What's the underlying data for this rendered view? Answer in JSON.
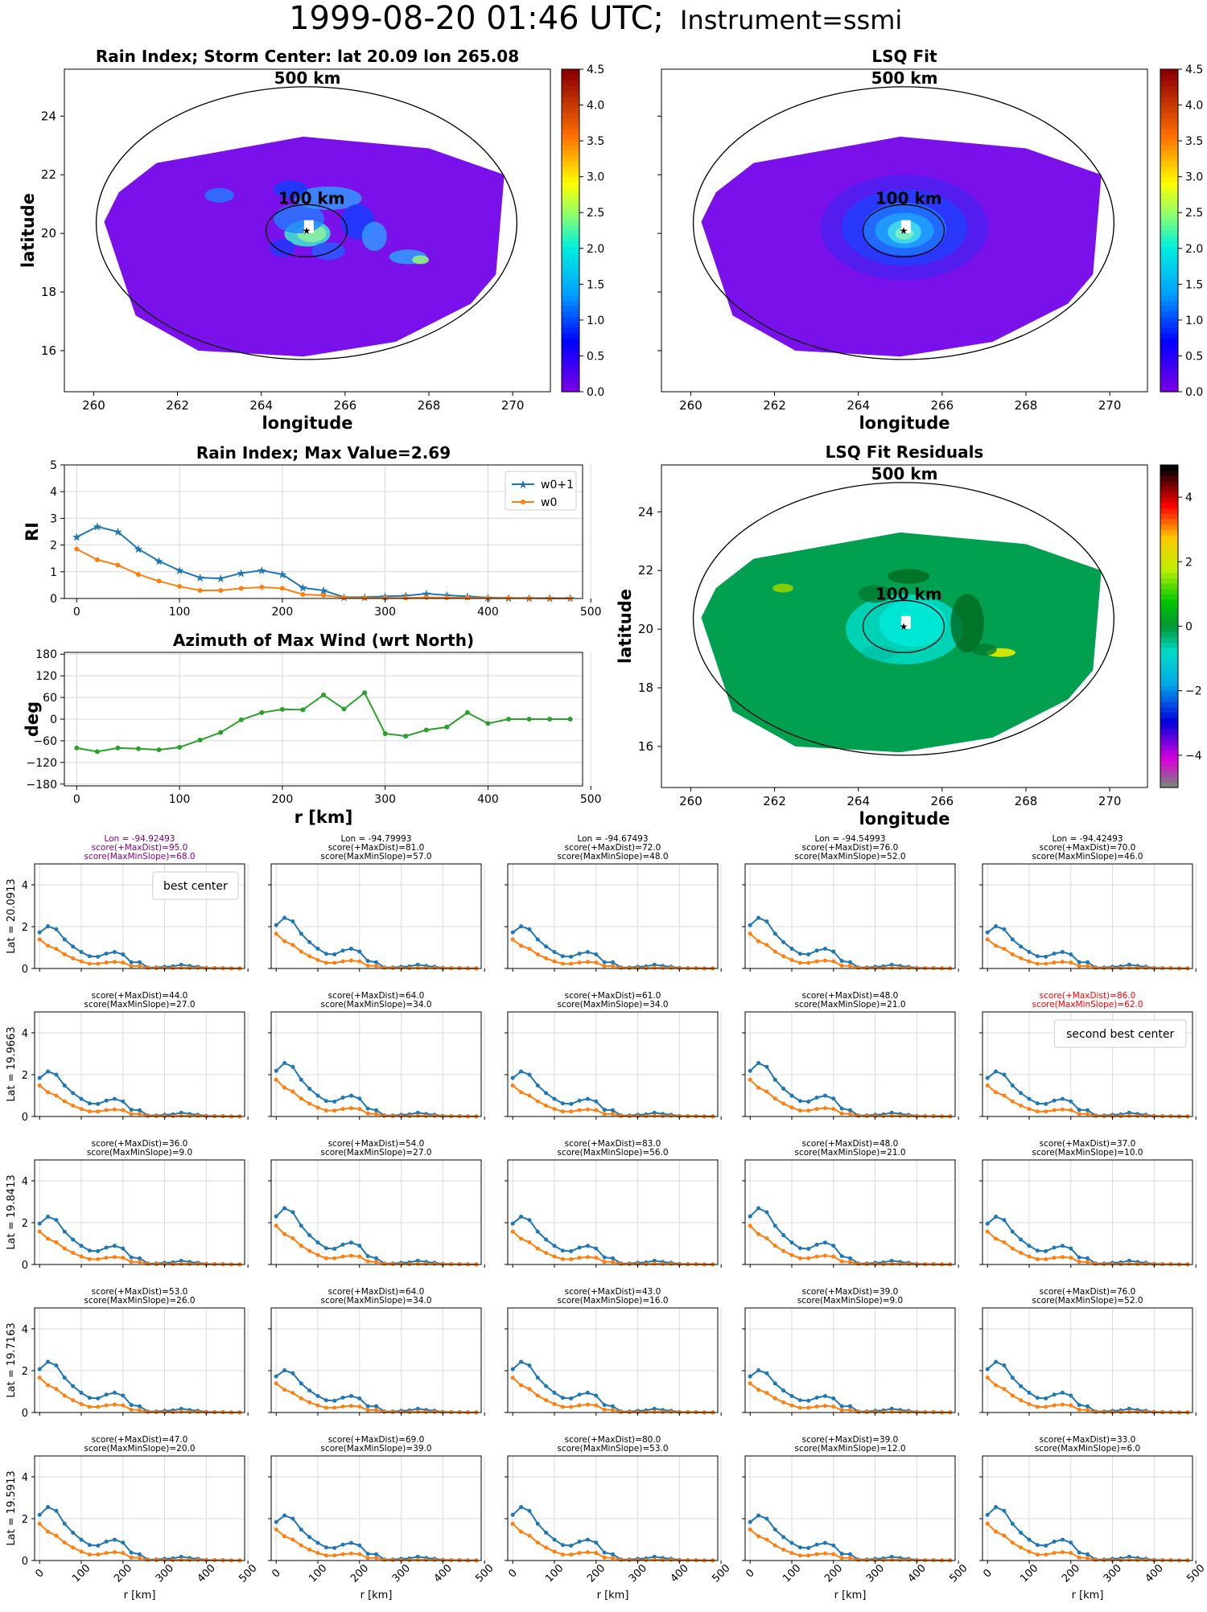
{
  "figure_title_main": "1999-08-20 01:46 UTC;",
  "figure_title_instr": "Instrument=ssmi",
  "chart_data": [
    {
      "id": "rain-index-map",
      "type": "heatmap",
      "title": "Rain Index; Storm Center: lat 20.09 lon 265.08",
      "xlabel": "longitude",
      "ylabel": "latitude",
      "xticks": [
        260,
        262,
        264,
        266,
        268,
        270
      ],
      "yticks": [
        16,
        18,
        20,
        22,
        24
      ],
      "xlim": [
        259.3,
        270.9
      ],
      "ylim": [
        14.6,
        25.6
      ],
      "colorbar": {
        "min": 0,
        "max": 4.5,
        "ticks": [
          "0.0",
          "0.5",
          "1.0",
          "1.5",
          "2.0",
          "2.5",
          "3.0",
          "3.5",
          "4.0",
          "4.5"
        ],
        "colormap": "rainbow"
      },
      "annotations": [
        "500 km",
        "100 km"
      ],
      "center": {
        "lon": 265.08,
        "lat": 20.09
      }
    },
    {
      "id": "lsq-fit-map",
      "type": "heatmap",
      "title": "LSQ Fit",
      "xlabel": "longitude",
      "ylabel": "",
      "xticks": [
        260,
        262,
        264,
        266,
        268,
        270
      ],
      "colorbar": {
        "min": 0,
        "max": 4.5,
        "ticks": [
          "0.0",
          "0.5",
          "1.0",
          "1.5",
          "2.0",
          "2.5",
          "3.0",
          "3.5",
          "4.0",
          "4.5"
        ],
        "colormap": "rainbow"
      },
      "annotations": [
        "500 km",
        "100 km"
      ]
    },
    {
      "id": "rain-index-profile",
      "type": "line",
      "title": "Rain Index; Max Value=2.69",
      "xlabel": "",
      "ylabel": "RI",
      "xlim": [
        -12,
        492
      ],
      "ylim": [
        0,
        5
      ],
      "xticks": [
        0,
        100,
        200,
        300,
        400,
        500
      ],
      "yticks": [
        0,
        1,
        2,
        3,
        4,
        5
      ],
      "x": [
        0,
        20,
        40,
        60,
        80,
        100,
        120,
        140,
        160,
        180,
        200,
        220,
        240,
        260,
        280,
        300,
        320,
        340,
        360,
        380,
        400,
        420,
        440,
        460,
        480
      ],
      "series": [
        {
          "name": "w0+1",
          "color": "#1f77b4",
          "marker": "star",
          "values": [
            2.3,
            2.69,
            2.5,
            1.85,
            1.4,
            1.05,
            0.78,
            0.75,
            0.95,
            1.05,
            0.9,
            0.4,
            0.3,
            0.05,
            0.05,
            0.08,
            0.1,
            0.18,
            0.12,
            0.08,
            0.03,
            0.02,
            0.02,
            0.01,
            0.01
          ]
        },
        {
          "name": "w0",
          "color": "#ff7f0e",
          "marker": "dot",
          "values": [
            1.85,
            1.45,
            1.25,
            0.9,
            0.65,
            0.45,
            0.3,
            0.3,
            0.38,
            0.42,
            0.38,
            0.15,
            0.12,
            0.03,
            0.02,
            0.02,
            0.02,
            0.04,
            0.03,
            0.03,
            0.01,
            0.01,
            0.01,
            0.0,
            0.0
          ]
        }
      ],
      "legend": "top-right",
      "grid": true
    },
    {
      "id": "azimuth-profile",
      "type": "line",
      "title": "Azimuth of Max Wind (wrt North)",
      "xlabel": "r [km]",
      "ylabel": "deg",
      "xlim": [
        -12,
        492
      ],
      "ylim": [
        -185,
        185
      ],
      "xticks": [
        0,
        100,
        200,
        300,
        400,
        500
      ],
      "yticks": [
        180,
        120,
        60,
        0,
        -60,
        -120,
        -180
      ],
      "x": [
        0,
        20,
        40,
        60,
        80,
        100,
        120,
        140,
        160,
        180,
        200,
        220,
        240,
        260,
        280,
        300,
        320,
        340,
        360,
        380,
        400,
        420,
        440,
        460,
        480
      ],
      "series": [
        {
          "color": "#2ca02c",
          "values": [
            -80,
            -90,
            -80,
            -82,
            -85,
            -78,
            -58,
            -37,
            -2,
            18,
            27,
            26,
            67,
            28,
            73,
            -40,
            -47,
            -30,
            -22,
            18,
            -12,
            0,
            0,
            0,
            0
          ]
        }
      ],
      "grid": true
    },
    {
      "id": "lsq-residuals-map",
      "type": "heatmap",
      "title": "LSQ Fit Residuals",
      "xlabel": "longitude",
      "ylabel": "latitude",
      "xticks": [
        260,
        262,
        264,
        266,
        268,
        270
      ],
      "yticks": [
        16,
        18,
        20,
        22,
        24
      ],
      "colorbar": {
        "min": -5,
        "max": 5,
        "ticks": [
          "4",
          "2",
          "0",
          "−2",
          "−4"
        ],
        "colormap": "nipy_spectral"
      },
      "annotations": [
        "500 km",
        "100 km"
      ]
    },
    {
      "id": "center-candidates-grid",
      "type": "line",
      "xlabel": "r [km]",
      "xticks": [
        0,
        100,
        200,
        300,
        400,
        500
      ],
      "yticks": [
        0,
        2,
        4
      ],
      "series_colors": {
        "w0+1": "#1f77b4",
        "w0": "#ff7f0e"
      },
      "rows": [
        {
          "lat_label": "Lat = 20.0913",
          "cells": [
            {
              "lines": [
                "Lon = -94.92493",
                "score(+MaxDist)=95.0",
                "score(MaxMinSlope)=68.0"
              ],
              "color": "#800080",
              "legend": "best center"
            },
            {
              "lines": [
                "Lon = -94.79993",
                "score(+MaxDist)=81.0",
                "score(MaxMinSlope)=57.0"
              ]
            },
            {
              "lines": [
                "Lon = -94.67493",
                "score(+MaxDist)=72.0",
                "score(MaxMinSlope)=48.0"
              ]
            },
            {
              "lines": [
                "Lon = -94.54993",
                "score(+MaxDist)=76.0",
                "score(MaxMinSlope)=52.0"
              ]
            },
            {
              "lines": [
                "Lon = -94.42493",
                "score(+MaxDist)=70.0",
                "score(MaxMinSlope)=46.0"
              ]
            }
          ]
        },
        {
          "lat_label": "Lat = 19.9663",
          "cells": [
            {
              "lines": [
                "score(+MaxDist)=44.0",
                "score(MaxMinSlope)=27.0"
              ]
            },
            {
              "lines": [
                "score(+MaxDist)=64.0",
                "score(MaxMinSlope)=34.0"
              ]
            },
            {
              "lines": [
                "score(+MaxDist)=61.0",
                "score(MaxMinSlope)=34.0"
              ]
            },
            {
              "lines": [
                "score(+MaxDist)=48.0",
                "score(MaxMinSlope)=21.0"
              ]
            },
            {
              "lines": [
                "score(+MaxDist)=86.0",
                "score(MaxMinSlope)=62.0"
              ],
              "color": "#ff0000",
              "legend": "second best center"
            }
          ]
        },
        {
          "lat_label": "Lat = 19.8413",
          "cells": [
            {
              "lines": [
                "score(+MaxDist)=36.0",
                "score(MaxMinSlope)=9.0"
              ]
            },
            {
              "lines": [
                "score(+MaxDist)=54.0",
                "score(MaxMinSlope)=27.0"
              ]
            },
            {
              "lines": [
                "score(+MaxDist)=83.0",
                "score(MaxMinSlope)=56.0"
              ]
            },
            {
              "lines": [
                "score(+MaxDist)=48.0",
                "score(MaxMinSlope)=21.0"
              ]
            },
            {
              "lines": [
                "score(+MaxDist)=37.0",
                "score(MaxMinSlope)=10.0"
              ]
            }
          ]
        },
        {
          "lat_label": "Lat = 19.7163",
          "cells": [
            {
              "lines": [
                "score(+MaxDist)=53.0",
                "score(MaxMinSlope)=26.0"
              ]
            },
            {
              "lines": [
                "score(+MaxDist)=64.0",
                "score(MaxMinSlope)=34.0"
              ]
            },
            {
              "lines": [
                "score(+MaxDist)=43.0",
                "score(MaxMinSlope)=16.0"
              ]
            },
            {
              "lines": [
                "score(+MaxDist)=39.0",
                "score(MaxMinSlope)=9.0"
              ]
            },
            {
              "lines": [
                "score(+MaxDist)=76.0",
                "score(MaxMinSlope)=52.0"
              ]
            }
          ]
        },
        {
          "lat_label": "Lat = 19.5913",
          "cells": [
            {
              "lines": [
                "score(+MaxDist)=47.0",
                "score(MaxMinSlope)=20.0"
              ]
            },
            {
              "lines": [
                "score(+MaxDist)=69.0",
                "score(MaxMinSlope)=39.0"
              ]
            },
            {
              "lines": [
                "score(+MaxDist)=80.0",
                "score(MaxMinSlope)=53.0"
              ]
            },
            {
              "lines": [
                "score(+MaxDist)=39.0",
                "score(MaxMinSlope)=12.0"
              ]
            },
            {
              "lines": [
                "score(+MaxDist)=33.0",
                "score(MaxMinSlope)=6.0"
              ]
            }
          ]
        }
      ]
    }
  ]
}
